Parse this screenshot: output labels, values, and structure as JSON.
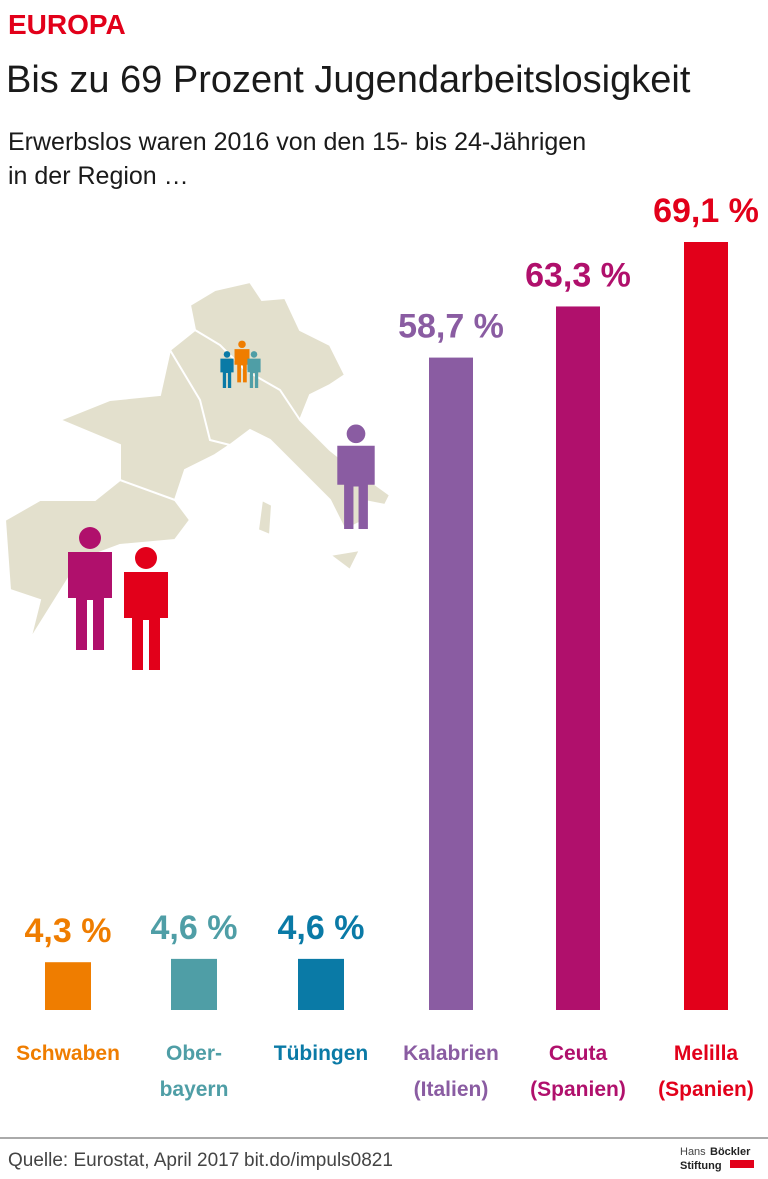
{
  "chart_data": {
    "type": "bar",
    "kicker": "EUROPA",
    "title": "Bis zu 69 Prozent Jugendarbeitslosigkeit",
    "subtitle": "Erwerbslos waren 2016 von den 15- bis 24-Jährigen\nin der Region …",
    "categories": [
      "Schwaben",
      "Ober-\nbayern",
      "Tübingen",
      "Kalabrien\n(Italien)",
      "Ceuta\n(Spanien)",
      "Melilla\n(Spanien)"
    ],
    "values": [
      4.3,
      4.6,
      4.6,
      58.7,
      63.3,
      69.1
    ],
    "value_labels": [
      "4,3 %",
      "4,6 %",
      "4,6 %",
      "58,7 %",
      "63,3 %",
      "69,1 %"
    ],
    "colors": [
      "#ef7d00",
      "#4f9ea6",
      "#0a7aa6",
      "#8a5ca2",
      "#b0106c",
      "#e2001a"
    ],
    "source": "Quelle: Eurostat, April 2017",
    "link": "bit.do/impuls0821",
    "logo": [
      "Hans",
      "Böckler",
      "Stiftung"
    ]
  }
}
